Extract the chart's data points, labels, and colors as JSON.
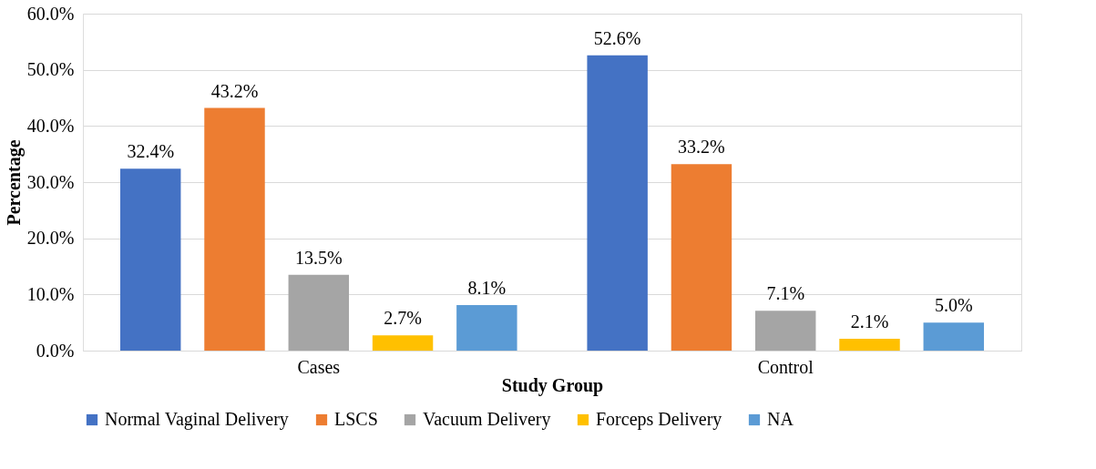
{
  "chart_data": {
    "type": "bar",
    "xlabel": "Study Group",
    "ylabel": "Percentage",
    "categories": [
      "Cases",
      "Control"
    ],
    "series": [
      {
        "name": "Normal Vaginal Delivery",
        "color": "#4472c4",
        "values": [
          32.4,
          52.6
        ],
        "value_labels": [
          "32.4%",
          "52.6%"
        ]
      },
      {
        "name": "LSCS",
        "color": "#ed7d31",
        "values": [
          43.2,
          33.2
        ],
        "value_labels": [
          "43.2%",
          "33.2%"
        ]
      },
      {
        "name": "Vacuum Delivery",
        "color": "#a5a5a5",
        "values": [
          13.5,
          7.1
        ],
        "value_labels": [
          "13.5%",
          "7.1%"
        ]
      },
      {
        "name": "Forceps Delivery",
        "color": "#ffc000",
        "values": [
          2.7,
          2.1
        ],
        "value_labels": [
          "2.7%",
          "2.1%"
        ]
      },
      {
        "name": "NA",
        "color": "#5b9bd5",
        "values": [
          8.1,
          5.0
        ],
        "value_labels": [
          "8.1%",
          "5.0%"
        ]
      }
    ],
    "ylim": [
      0,
      60
    ],
    "yticks": [
      {
        "value": 0,
        "label": "0.0%"
      },
      {
        "value": 10,
        "label": "10.0%"
      },
      {
        "value": 20,
        "label": "20.0%"
      },
      {
        "value": 30,
        "label": "30.0%"
      },
      {
        "value": 40,
        "label": "40.0%"
      },
      {
        "value": 50,
        "label": "50.0%"
      },
      {
        "value": 60,
        "label": "60.0%"
      }
    ],
    "grid": "y",
    "legend": "bottom"
  }
}
